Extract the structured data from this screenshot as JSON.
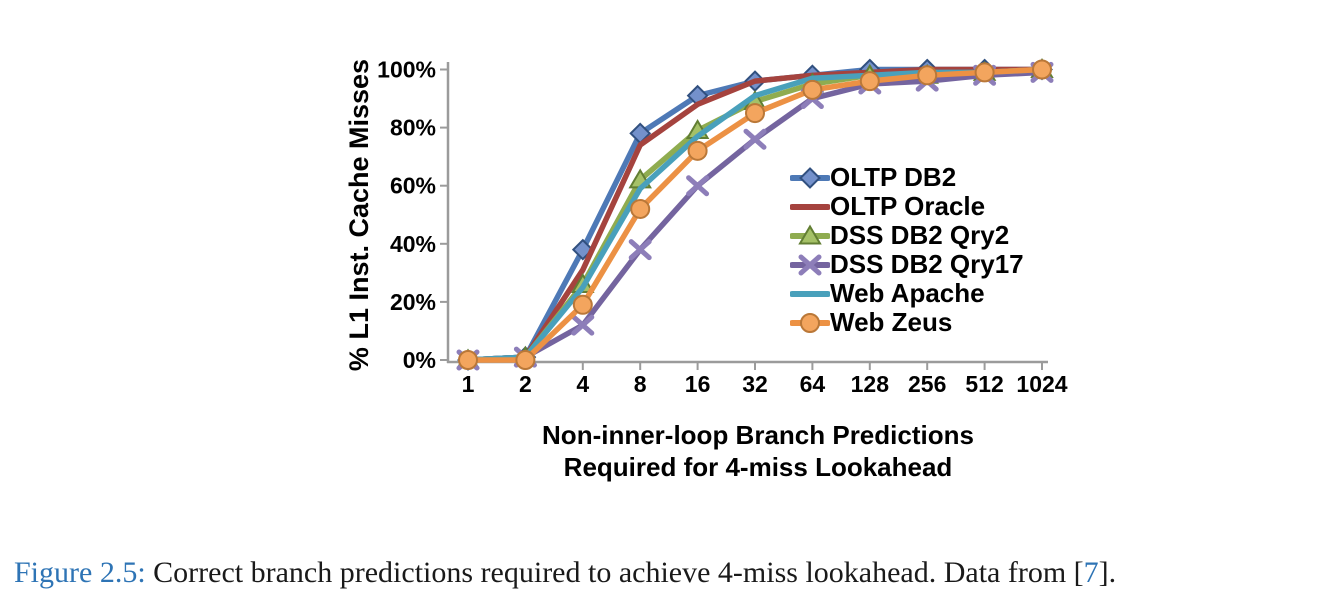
{
  "figure": {
    "caption": {
      "label": "Figure 2.5:",
      "text": " Correct branch predictions required to achieve 4-miss lookahead. Data from ",
      "bracket_open": "[",
      "ref": "7",
      "bracket_close": "].",
      "label_color": "#2E74B5",
      "ref_color": "#2E74B5"
    }
  },
  "chart_data": {
    "type": "line",
    "title": "",
    "xlabel": "Non-inner-loop Branch Predictions Required for 4-miss Lookahead",
    "xlabel_lines": [
      "Non-inner-loop Branch Predictions",
      "Required for 4-miss Lookahead"
    ],
    "ylabel": "% L1 Inst. Cache Misses",
    "categories": [
      "1",
      "2",
      "4",
      "8",
      "16",
      "32",
      "64",
      "128",
      "256",
      "512",
      "1024"
    ],
    "x_scale": "power-of-two categories",
    "ylim": [
      0,
      100
    ],
    "y_tick_step": 20,
    "y_tick_suffix": "%",
    "grid": false,
    "legend_position": "inside-right",
    "axis_color": "#9B9B9B",
    "series": [
      {
        "name": "OLTP DB2",
        "color": "#4E79B6",
        "marker": "diamond",
        "marker_fill": "#7491CB",
        "marker_edge": "#31507F",
        "values": [
          0,
          1,
          38,
          78,
          91,
          96,
          98,
          100,
          100,
          100,
          100
        ]
      },
      {
        "name": "OLTP Oracle",
        "color": "#A5433E",
        "marker": "none",
        "marker_fill": "#A5433E",
        "marker_edge": "#A5433E",
        "values": [
          0,
          1,
          31,
          74,
          88,
          96,
          98,
          99,
          100,
          100,
          100
        ]
      },
      {
        "name": "DSS DB2 Qry2",
        "color": "#8FAC50",
        "marker": "triangle",
        "marker_fill": "#A5C167",
        "marker_edge": "#627E33",
        "values": [
          0,
          1,
          26,
          62,
          79,
          89,
          95,
          98,
          98,
          99,
          100
        ]
      },
      {
        "name": "DSS DB2 Qry17",
        "color": "#74649F",
        "marker": "x",
        "marker_fill": "#8D7EB9",
        "marker_edge": "#74649F",
        "values": [
          0,
          1,
          12,
          38,
          60,
          76,
          90,
          95,
          96,
          98,
          99
        ]
      },
      {
        "name": "Web Apache",
        "color": "#49A0BB",
        "marker": "none",
        "marker_fill": "#49A0BB",
        "marker_edge": "#49A0BB",
        "values": [
          0,
          1,
          25,
          59,
          77,
          91,
          97,
          98,
          99,
          99,
          100
        ]
      },
      {
        "name": "Web Zeus",
        "color": "#EC9144",
        "marker": "circle",
        "marker_fill": "#F3A55E",
        "marker_edge": "#BA7838",
        "values": [
          0,
          0,
          19,
          52,
          72,
          85,
          93,
          96,
          98,
          99,
          100
        ]
      }
    ]
  }
}
